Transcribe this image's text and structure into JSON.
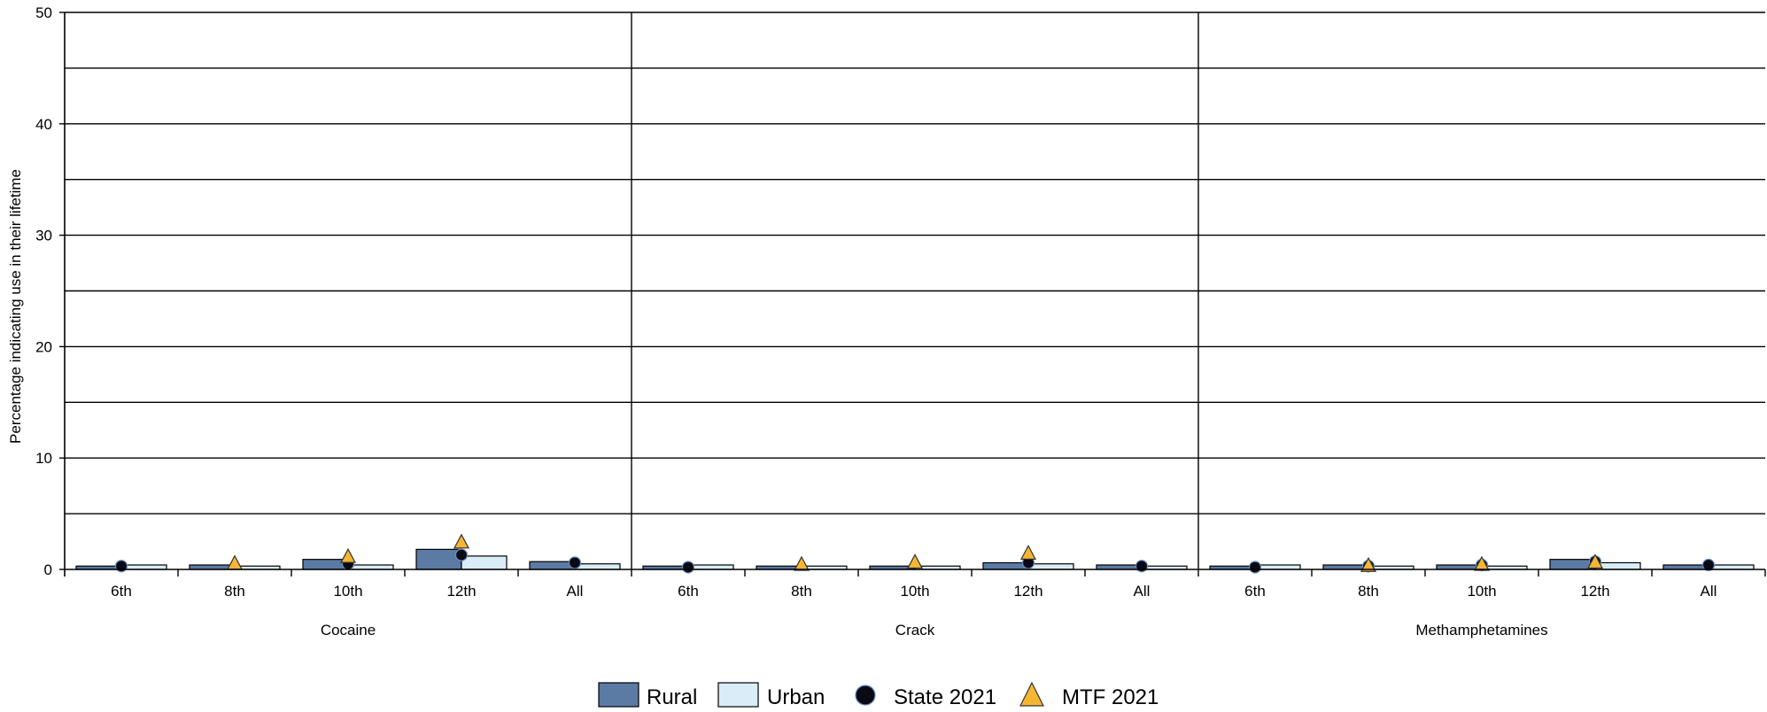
{
  "chart_data": {
    "type": "bar",
    "ylabel": "Percentage indicating use in their lifetime",
    "ylim": [
      0,
      50
    ],
    "yticks": [
      0,
      10,
      20,
      30,
      40,
      50
    ],
    "grid": true,
    "legend_position": "bottom",
    "groups": [
      {
        "name": "Cocaine",
        "categories": [
          "6th",
          "8th",
          "10th",
          "12th",
          "All"
        ],
        "rural": [
          0.3,
          0.4,
          0.9,
          1.8,
          0.7
        ],
        "urban": [
          0.4,
          0.3,
          0.4,
          1.2,
          0.5
        ],
        "state_2021": [
          0.3,
          null,
          0.5,
          1.3,
          0.6
        ],
        "mtf_2021": [
          null,
          0.5,
          1.1,
          2.4,
          null
        ]
      },
      {
        "name": "Crack",
        "categories": [
          "6th",
          "8th",
          "10th",
          "12th",
          "All"
        ],
        "rural": [
          0.3,
          0.3,
          0.3,
          0.6,
          0.4
        ],
        "urban": [
          0.4,
          0.3,
          0.3,
          0.5,
          0.3
        ],
        "state_2021": [
          0.2,
          null,
          null,
          0.6,
          0.3
        ],
        "mtf_2021": [
          null,
          0.4,
          0.6,
          1.4,
          null
        ]
      },
      {
        "name": "Methamphetamines",
        "categories": [
          "6th",
          "8th",
          "10th",
          "12th",
          "All"
        ],
        "rural": [
          0.3,
          0.4,
          0.4,
          0.9,
          0.4
        ],
        "urban": [
          0.4,
          0.3,
          0.3,
          0.6,
          0.4
        ],
        "state_2021": [
          0.2,
          0.3,
          0.4,
          0.7,
          0.4
        ],
        "mtf_2021": [
          null,
          0.3,
          0.4,
          0.6,
          null
        ]
      }
    ],
    "series": [
      {
        "name": "Rural",
        "key": "rural",
        "kind": "bar",
        "color": "#5b7aa4"
      },
      {
        "name": "Urban",
        "key": "urban",
        "kind": "bar",
        "color": "#d9ecf8"
      },
      {
        "name": "State 2021",
        "key": "state_2021",
        "kind": "marker-circle",
        "color": "#0a0a14"
      },
      {
        "name": "MTF 2021",
        "key": "mtf_2021",
        "kind": "marker-triangle",
        "color": "#f5b633"
      }
    ]
  }
}
